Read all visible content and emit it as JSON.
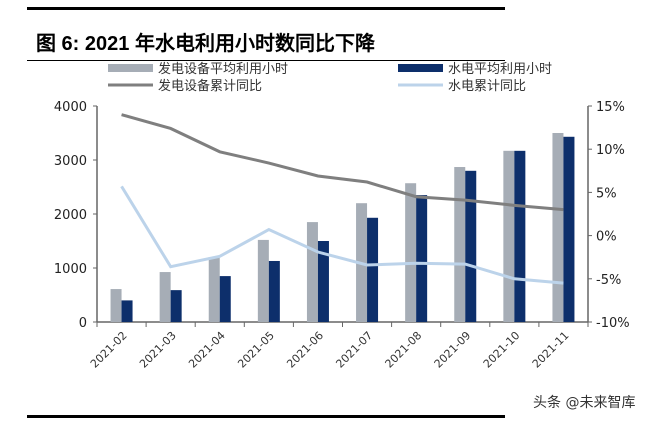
{
  "title": "图 6:  2021 年水电利用小时数同比下降",
  "watermark": "头条 @未来智库",
  "chart_data": {
    "type": "bar+line",
    "categories": [
      "2021-02",
      "2021-03",
      "2021-04",
      "2021-05",
      "2021-06",
      "2021-07",
      "2021-08",
      "2021-09",
      "2021-10",
      "2021-11"
    ],
    "left_axis": {
      "ylim": [
        0,
        4000
      ],
      "ticks": [
        "0",
        "1000",
        "2000",
        "3000",
        "4000"
      ]
    },
    "right_axis": {
      "ylim": [
        -10,
        15
      ],
      "ticks": [
        "-10%",
        "-5%",
        "0%",
        "5%",
        "10%",
        "15%"
      ]
    },
    "grid": false,
    "legend": "top",
    "series": [
      {
        "name": "发电设备平均利用小时",
        "type": "bar",
        "axis": "left",
        "color": "#a6adb6",
        "values": [
          610,
          925,
          1200,
          1520,
          1850,
          2200,
          2570,
          2870,
          3170,
          3500
        ]
      },
      {
        "name": "水电平均利用小时",
        "type": "bar",
        "axis": "left",
        "color": "#0d2f6b",
        "values": [
          400,
          590,
          850,
          1130,
          1500,
          1930,
          2350,
          2800,
          3170,
          3430
        ]
      },
      {
        "name": "发电设备累计同比",
        "type": "line",
        "axis": "right",
        "color": "#7f7f7f",
        "values": [
          14.0,
          12.4,
          9.7,
          8.4,
          6.9,
          6.2,
          4.5,
          4.1,
          3.5,
          3.0
        ]
      },
      {
        "name": "水电累计同比",
        "type": "line",
        "axis": "right",
        "color": "#bcd3ea",
        "values": [
          5.7,
          -3.6,
          -2.4,
          0.7,
          -1.9,
          -3.4,
          -3.2,
          -3.3,
          -5.0,
          -5.5
        ]
      }
    ]
  }
}
